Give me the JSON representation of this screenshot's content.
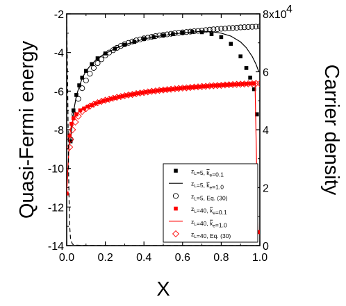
{
  "chart_data": {
    "type": "scatter",
    "title": "",
    "xlabel": "X",
    "ylabel_left": "Quasi-Fermi energy",
    "ylabel_right": "Carrier density",
    "xlim": [
      0,
      1
    ],
    "ylim_left": [
      -14,
      -2
    ],
    "ylim_right": [
      0,
      80000
    ],
    "x_ticks": [
      "0.0",
      "0.2",
      "0.4",
      "0.6",
      "0.8",
      "1.0"
    ],
    "y_left_ticks": [
      "-14",
      "-12",
      "-10",
      "-8",
      "-6",
      "-4",
      "-2"
    ],
    "y_right_ticks": [
      "0",
      "2",
      "4",
      "6"
    ],
    "y_right_top_label": "8x10",
    "y_right_top_exponent": "4",
    "grid": false,
    "legend_position": "lower-right",
    "legend": [
      {
        "prefix": "z",
        "sub1": "L",
        "middle": "=5, ",
        "k": "k",
        "sub2": "e",
        "suffix": "=0.1",
        "marker": "filled-square",
        "color": "#000000"
      },
      {
        "prefix": "z",
        "sub1": "L",
        "middle": "=5, ",
        "k": "k",
        "sub2": "e",
        "suffix": "=1.0",
        "marker": "line",
        "color": "#000000"
      },
      {
        "prefix": "z",
        "sub1": "L",
        "middle": "=5, Eq. (30)",
        "k": "",
        "sub2": "",
        "suffix": "",
        "marker": "open-circle",
        "color": "#000000"
      },
      {
        "prefix": "z",
        "sub1": "L",
        "middle": "=40, ",
        "k": "k",
        "sub2": "e",
        "suffix": "=0.1",
        "marker": "filled-square",
        "color": "#ff0000"
      },
      {
        "prefix": "z",
        "sub1": "L",
        "middle": "=40, ",
        "k": "k",
        "sub2": "e",
        "suffix": "=1.0",
        "marker": "line",
        "color": "#ff0000"
      },
      {
        "prefix": "z",
        "sub1": "L",
        "middle": "=40, Eq. (30)",
        "k": "",
        "sub2": "",
        "suffix": "",
        "marker": "open-diamond",
        "color": "#ff0000"
      }
    ],
    "series": [
      {
        "marker": "filled-square",
        "color": "#000000",
        "axis": "left",
        "x": [
          0.02,
          0.035,
          0.05,
          0.065,
          0.08,
          0.1,
          0.13,
          0.16,
          0.2,
          0.25,
          0.3,
          0.35,
          0.4,
          0.45,
          0.5,
          0.55,
          0.6,
          0.65,
          0.7,
          0.75,
          0.8,
          0.85,
          0.9,
          0.93,
          0.95,
          0.97,
          0.985
        ],
        "y": [
          -8.6,
          -7.0,
          -6.2,
          -5.7,
          -5.3,
          -4.95,
          -4.6,
          -4.3,
          -4.05,
          -3.8,
          -3.6,
          -3.45,
          -3.3,
          -3.2,
          -3.12,
          -3.05,
          -2.98,
          -2.93,
          -2.95,
          -3.05,
          -3.2,
          -3.55,
          -4.2,
          -4.8,
          -5.3,
          -5.9,
          -7.2
        ]
      },
      {
        "marker": "line",
        "color": "#000000",
        "axis": "left",
        "x": [
          0.02,
          0.035,
          0.05,
          0.065,
          0.08,
          0.1,
          0.13,
          0.16,
          0.2,
          0.25,
          0.3,
          0.35,
          0.4,
          0.45,
          0.5,
          0.55,
          0.6,
          0.65,
          0.7,
          0.75,
          0.8,
          0.85,
          0.9,
          0.93,
          0.96,
          0.98,
          0.995
        ],
        "y": [
          -8.6,
          -7.1,
          -6.25,
          -5.75,
          -5.35,
          -4.95,
          -4.6,
          -4.3,
          -4.05,
          -3.8,
          -3.6,
          -3.45,
          -3.3,
          -3.2,
          -3.12,
          -3.05,
          -2.98,
          -2.95,
          -2.9,
          -2.92,
          -3.0,
          -3.15,
          -3.45,
          -3.75,
          -4.2,
          -4.6,
          -5.0
        ]
      },
      {
        "marker": "open-circle",
        "color": "#000000",
        "axis": "left",
        "x": [
          0.02,
          0.04,
          0.06,
          0.08,
          0.1,
          0.12,
          0.14,
          0.16,
          0.18,
          0.2,
          0.22,
          0.24,
          0.26,
          0.28,
          0.3,
          0.32,
          0.34,
          0.36,
          0.38,
          0.4,
          0.42,
          0.44,
          0.46,
          0.48,
          0.5,
          0.52,
          0.54,
          0.56,
          0.58,
          0.6,
          0.62,
          0.64,
          0.66,
          0.68,
          0.7,
          0.72,
          0.74,
          0.76,
          0.78,
          0.8,
          0.82,
          0.84,
          0.86,
          0.88,
          0.9,
          0.92,
          0.94,
          0.96,
          0.98,
          1.0
        ],
        "y": [
          -8.5,
          -7.2,
          -6.4,
          -5.85,
          -5.45,
          -5.1,
          -4.8,
          -4.55,
          -4.35,
          -4.15,
          -4.0,
          -3.88,
          -3.76,
          -3.66,
          -3.57,
          -3.5,
          -3.43,
          -3.37,
          -3.32,
          -3.27,
          -3.23,
          -3.19,
          -3.15,
          -3.12,
          -3.09,
          -3.06,
          -3.03,
          -3.0,
          -2.98,
          -2.96,
          -2.94,
          -2.92,
          -2.9,
          -2.88,
          -2.86,
          -2.84,
          -2.82,
          -2.8,
          -2.79,
          -2.77,
          -2.76,
          -2.74,
          -2.73,
          -2.72,
          -2.7,
          -2.69,
          -2.68,
          -2.67,
          -2.66,
          -2.65
        ]
      },
      {
        "marker": "filled-square",
        "color": "#ff0000",
        "axis": "left",
        "x": [
          0.0,
          0.015,
          0.025,
          0.035,
          0.05,
          0.07,
          0.09,
          0.11,
          0.13,
          0.15,
          0.17,
          0.19,
          0.21,
          0.23,
          0.25,
          0.27,
          0.29,
          0.31,
          0.33,
          0.35,
          0.37,
          0.39,
          0.41,
          0.43,
          0.45,
          0.47,
          0.49,
          0.51,
          0.53,
          0.55,
          0.57,
          0.59,
          0.61,
          0.63,
          0.65,
          0.67,
          0.69,
          0.71,
          0.73,
          0.75,
          0.77,
          0.79,
          0.81,
          0.83,
          0.85,
          0.87,
          0.89,
          0.91,
          0.93,
          0.95,
          0.97,
          0.99
        ],
        "y": [
          -11.3,
          -8.3,
          -7.7,
          -7.4,
          -7.2,
          -7.0,
          -6.9,
          -6.8,
          -6.72,
          -6.64,
          -6.57,
          -6.5,
          -6.45,
          -6.4,
          -6.35,
          -6.3,
          -6.26,
          -6.22,
          -6.18,
          -6.15,
          -6.11,
          -6.08,
          -6.05,
          -6.02,
          -6.0,
          -5.97,
          -5.95,
          -5.93,
          -5.91,
          -5.89,
          -5.87,
          -5.85,
          -5.83,
          -5.82,
          -5.8,
          -5.78,
          -5.77,
          -5.75,
          -5.74,
          -5.72,
          -5.71,
          -5.7,
          -5.68,
          -5.67,
          -5.66,
          -5.65,
          -5.64,
          -5.63,
          -5.62,
          -5.61,
          -5.6,
          -13.3
        ]
      },
      {
        "marker": "line",
        "color": "#ff0000",
        "axis": "left",
        "x": [
          0.0,
          0.015,
          0.025,
          0.035,
          0.05,
          0.07,
          0.1,
          0.15,
          0.2,
          0.25,
          0.3,
          0.35,
          0.4,
          0.45,
          0.5,
          0.55,
          0.6,
          0.65,
          0.7,
          0.75,
          0.8,
          0.85,
          0.9,
          0.95,
          0.975,
          0.99
        ],
        "y": [
          -11.3,
          -8.3,
          -7.7,
          -7.4,
          -7.2,
          -7.0,
          -6.85,
          -6.64,
          -6.48,
          -6.35,
          -6.26,
          -6.15,
          -6.06,
          -5.99,
          -5.93,
          -5.89,
          -5.85,
          -5.8,
          -5.76,
          -5.72,
          -5.69,
          -5.66,
          -5.63,
          -5.6,
          -5.65,
          -13.3
        ]
      },
      {
        "marker": "open-diamond",
        "color": "#ff0000",
        "axis": "left",
        "x": [
          0.015,
          0.02,
          0.03,
          0.045,
          0.06,
          0.08,
          0.1,
          0.12,
          0.14,
          0.16,
          0.18,
          0.2,
          0.22,
          0.24,
          0.26,
          0.28,
          0.3,
          0.32,
          0.34,
          0.36,
          0.38,
          0.4,
          0.42,
          0.44,
          0.46,
          0.48,
          0.5,
          0.52,
          0.54,
          0.56,
          0.58,
          0.6,
          0.62,
          0.64,
          0.66,
          0.68,
          0.7,
          0.72,
          0.74,
          0.76,
          0.78,
          0.8,
          0.82,
          0.84,
          0.86,
          0.88,
          0.9,
          0.92,
          0.94,
          0.96,
          0.98,
          1.0
        ],
        "y": [
          -8.9,
          -8.5,
          -8.0,
          -7.6,
          -7.3,
          -7.05,
          -6.9,
          -6.78,
          -6.68,
          -6.6,
          -6.53,
          -6.47,
          -6.42,
          -6.37,
          -6.32,
          -6.28,
          -6.24,
          -6.2,
          -6.17,
          -6.13,
          -6.1,
          -6.07,
          -6.04,
          -6.01,
          -5.99,
          -5.96,
          -5.94,
          -5.92,
          -5.9,
          -5.88,
          -5.86,
          -5.84,
          -5.83,
          -5.81,
          -5.79,
          -5.78,
          -5.76,
          -5.75,
          -5.73,
          -5.72,
          -5.71,
          -5.7,
          -5.68,
          -5.67,
          -5.66,
          -5.65,
          -5.64,
          -5.63,
          -5.62,
          -5.61,
          -5.6,
          -5.6
        ]
      },
      {
        "marker": "dashed-line",
        "color": "#000000",
        "axis": "right",
        "x": [
          0.0,
          0.005,
          0.01,
          0.015,
          0.02,
          0.03,
          0.05,
          0.1,
          0.3,
          0.6,
          0.9,
          0.99
        ],
        "y": [
          78000,
          55000,
          24000,
          7000,
          2200,
          500,
          150,
          40,
          10,
          10,
          10,
          10
        ]
      }
    ]
  }
}
